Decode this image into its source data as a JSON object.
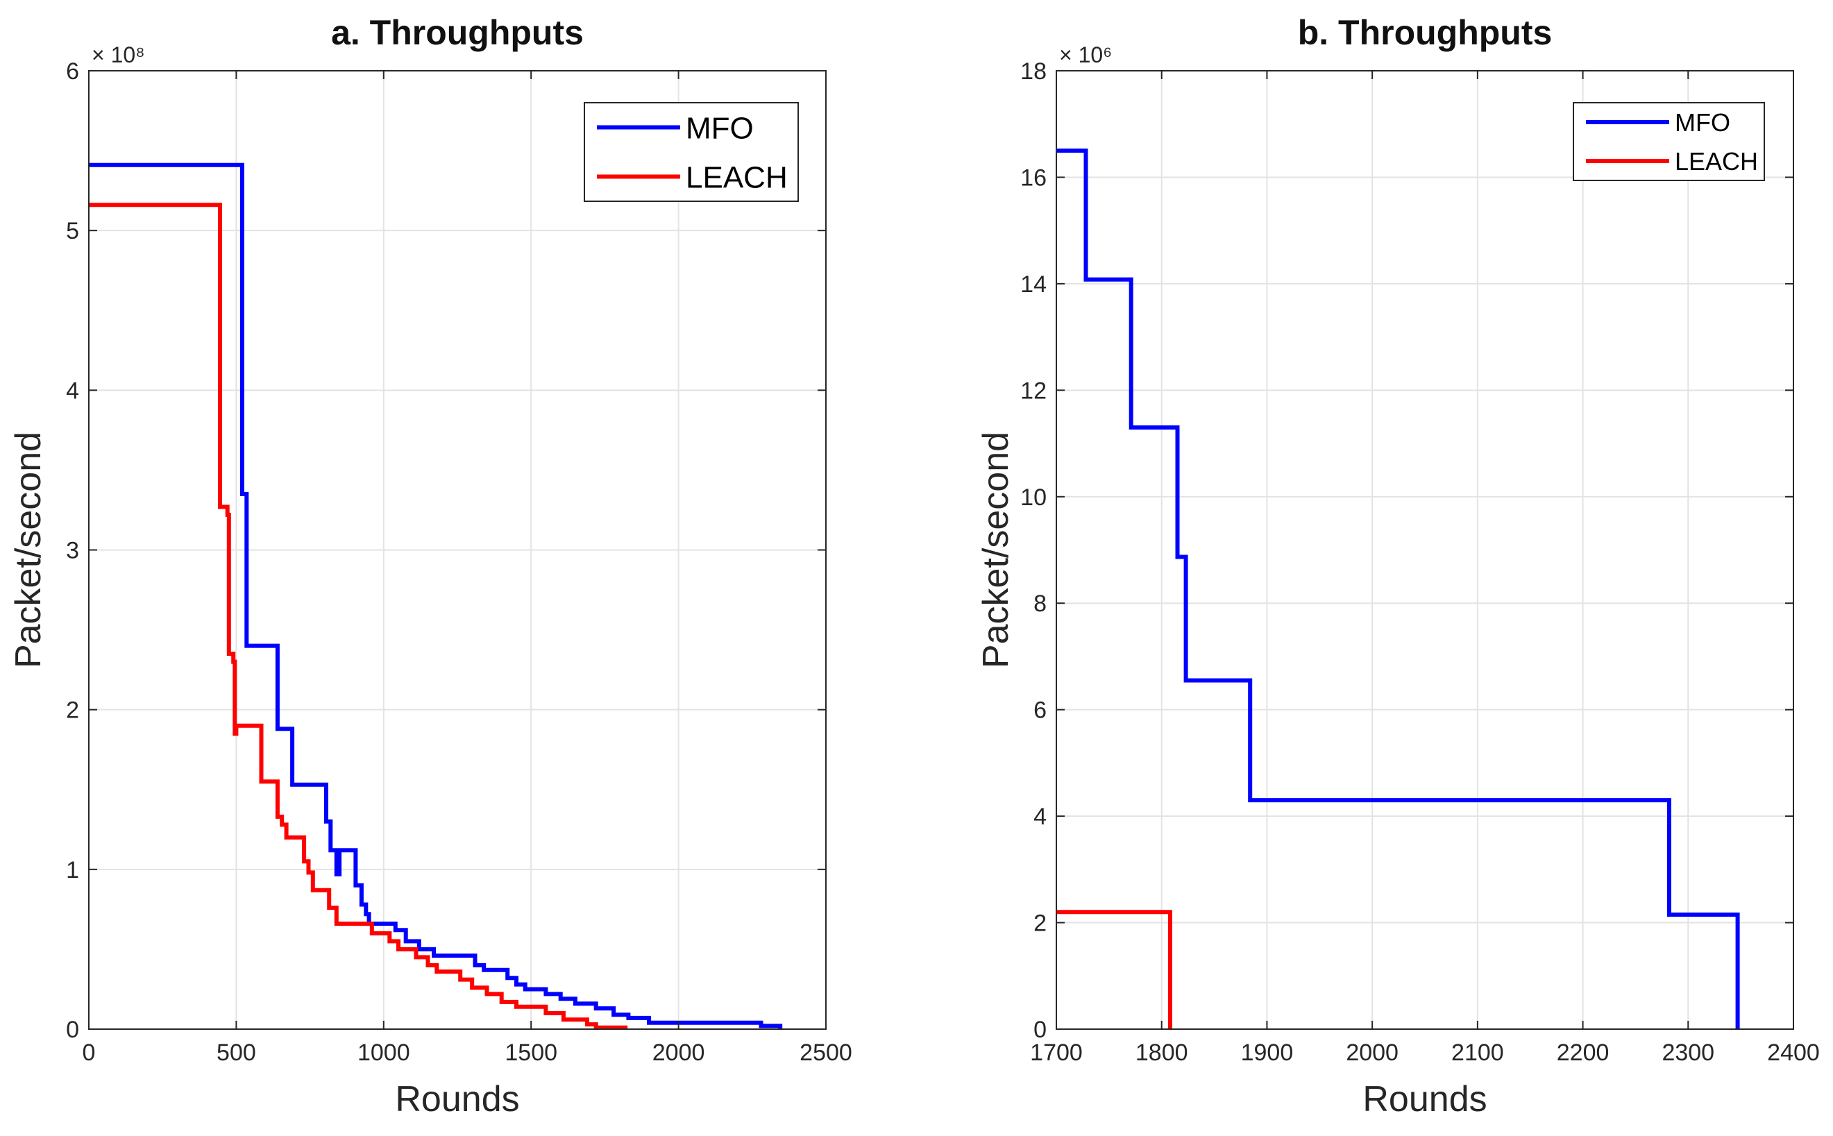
{
  "chart_data": [
    {
      "type": "line",
      "title": "a. Throughputs",
      "xlabel": "Rounds",
      "ylabel": "Packet/second",
      "xlim": [
        0,
        2500
      ],
      "ylim": [
        0,
        6
      ],
      "xticks": [
        0,
        500,
        1000,
        1500,
        2000,
        2500
      ],
      "yticks": [
        0,
        1,
        2,
        3,
        4,
        5,
        6
      ],
      "y_exponent_label": "× 10⁸",
      "grid": true,
      "legend_position": "top-right",
      "series": [
        {
          "name": "MFO",
          "color": "#0000ff",
          "points": [
            [
              0,
              5.41
            ],
            [
              520,
              5.41
            ],
            [
              520,
              3.35
            ],
            [
              535,
              3.35
            ],
            [
              535,
              2.4
            ],
            [
              640,
              2.4
            ],
            [
              640,
              1.88
            ],
            [
              690,
              1.88
            ],
            [
              690,
              1.53
            ],
            [
              805,
              1.53
            ],
            [
              805,
              1.3
            ],
            [
              820,
              1.3
            ],
            [
              820,
              1.12
            ],
            [
              840,
              1.12
            ],
            [
              840,
              0.97
            ],
            [
              850,
              0.97
            ],
            [
              850,
              1.12
            ],
            [
              905,
              1.12
            ],
            [
              905,
              0.9
            ],
            [
              925,
              0.9
            ],
            [
              925,
              0.78
            ],
            [
              940,
              0.78
            ],
            [
              940,
              0.72
            ],
            [
              950,
              0.72
            ],
            [
              950,
              0.66
            ],
            [
              1040,
              0.66
            ],
            [
              1040,
              0.62
            ],
            [
              1075,
              0.62
            ],
            [
              1075,
              0.55
            ],
            [
              1120,
              0.55
            ],
            [
              1120,
              0.5
            ],
            [
              1170,
              0.5
            ],
            [
              1170,
              0.46
            ],
            [
              1310,
              0.46
            ],
            [
              1310,
              0.4
            ],
            [
              1340,
              0.4
            ],
            [
              1340,
              0.37
            ],
            [
              1420,
              0.37
            ],
            [
              1420,
              0.32
            ],
            [
              1450,
              0.32
            ],
            [
              1450,
              0.28
            ],
            [
              1480,
              0.28
            ],
            [
              1480,
              0.25
            ],
            [
              1550,
              0.25
            ],
            [
              1550,
              0.22
            ],
            [
              1600,
              0.22
            ],
            [
              1600,
              0.19
            ],
            [
              1650,
              0.19
            ],
            [
              1650,
              0.16
            ],
            [
              1720,
              0.16
            ],
            [
              1720,
              0.13
            ],
            [
              1780,
              0.13
            ],
            [
              1780,
              0.09
            ],
            [
              1830,
              0.09
            ],
            [
              1830,
              0.07
            ],
            [
              1900,
              0.07
            ],
            [
              1900,
              0.04
            ],
            [
              2280,
              0.04
            ],
            [
              2280,
              0.02
            ],
            [
              2345,
              0.02
            ],
            [
              2345,
              0.0
            ]
          ]
        },
        {
          "name": "LEACH",
          "color": "#ff0000",
          "points": [
            [
              0,
              5.16
            ],
            [
              445,
              5.16
            ],
            [
              445,
              3.27
            ],
            [
              470,
              3.27
            ],
            [
              470,
              3.22
            ],
            [
              475,
              3.22
            ],
            [
              475,
              2.35
            ],
            [
              490,
              2.35
            ],
            [
              490,
              2.3
            ],
            [
              495,
              2.3
            ],
            [
              495,
              1.85
            ],
            [
              500,
              1.85
            ],
            [
              500,
              1.9
            ],
            [
              585,
              1.9
            ],
            [
              585,
              1.55
            ],
            [
              640,
              1.55
            ],
            [
              640,
              1.33
            ],
            [
              655,
              1.33
            ],
            [
              655,
              1.28
            ],
            [
              670,
              1.28
            ],
            [
              670,
              1.2
            ],
            [
              730,
              1.2
            ],
            [
              730,
              1.05
            ],
            [
              745,
              1.05
            ],
            [
              745,
              0.98
            ],
            [
              760,
              0.98
            ],
            [
              760,
              0.87
            ],
            [
              815,
              0.87
            ],
            [
              815,
              0.76
            ],
            [
              840,
              0.76
            ],
            [
              840,
              0.66
            ],
            [
              960,
              0.66
            ],
            [
              960,
              0.6
            ],
            [
              1020,
              0.6
            ],
            [
              1020,
              0.55
            ],
            [
              1050,
              0.55
            ],
            [
              1050,
              0.5
            ],
            [
              1110,
              0.5
            ],
            [
              1110,
              0.45
            ],
            [
              1150,
              0.45
            ],
            [
              1150,
              0.4
            ],
            [
              1180,
              0.4
            ],
            [
              1180,
              0.36
            ],
            [
              1260,
              0.36
            ],
            [
              1260,
              0.31
            ],
            [
              1300,
              0.31
            ],
            [
              1300,
              0.26
            ],
            [
              1350,
              0.26
            ],
            [
              1350,
              0.22
            ],
            [
              1400,
              0.22
            ],
            [
              1400,
              0.17
            ],
            [
              1450,
              0.17
            ],
            [
              1450,
              0.14
            ],
            [
              1550,
              0.14
            ],
            [
              1550,
              0.1
            ],
            [
              1610,
              0.1
            ],
            [
              1610,
              0.06
            ],
            [
              1690,
              0.06
            ],
            [
              1690,
              0.03
            ],
            [
              1720,
              0.03
            ],
            [
              1720,
              0.01
            ],
            [
              1820,
              0.01
            ],
            [
              1820,
              0.0
            ]
          ]
        }
      ]
    },
    {
      "type": "line",
      "title": "b. Throughputs",
      "xlabel": "Rounds",
      "ylabel": "Packet/second",
      "xlim": [
        1700,
        2400
      ],
      "ylim": [
        0,
        18
      ],
      "xticks": [
        1700,
        1800,
        1900,
        2000,
        2100,
        2200,
        2300,
        2400
      ],
      "yticks": [
        0,
        2,
        4,
        6,
        8,
        10,
        12,
        14,
        16,
        18
      ],
      "y_exponent_label": "× 10⁶",
      "grid": true,
      "legend_position": "top-right",
      "series": [
        {
          "name": "MFO",
          "color": "#0000ff",
          "points": [
            [
              1700,
              16.5
            ],
            [
              1728,
              16.5
            ],
            [
              1728,
              14.08
            ],
            [
              1771,
              14.08
            ],
            [
              1771,
              11.3
            ],
            [
              1815,
              11.3
            ],
            [
              1815,
              8.87
            ],
            [
              1823,
              8.87
            ],
            [
              1823,
              6.55
            ],
            [
              1884,
              6.55
            ],
            [
              1884,
              4.3
            ],
            [
              2282,
              4.3
            ],
            [
              2282,
              2.15
            ],
            [
              2347,
              2.15
            ],
            [
              2347,
              0.0
            ]
          ]
        },
        {
          "name": "LEACH",
          "color": "#ff0000",
          "points": [
            [
              1700,
              2.2
            ],
            [
              1808,
              2.2
            ],
            [
              1808,
              0.0
            ]
          ]
        }
      ]
    }
  ]
}
